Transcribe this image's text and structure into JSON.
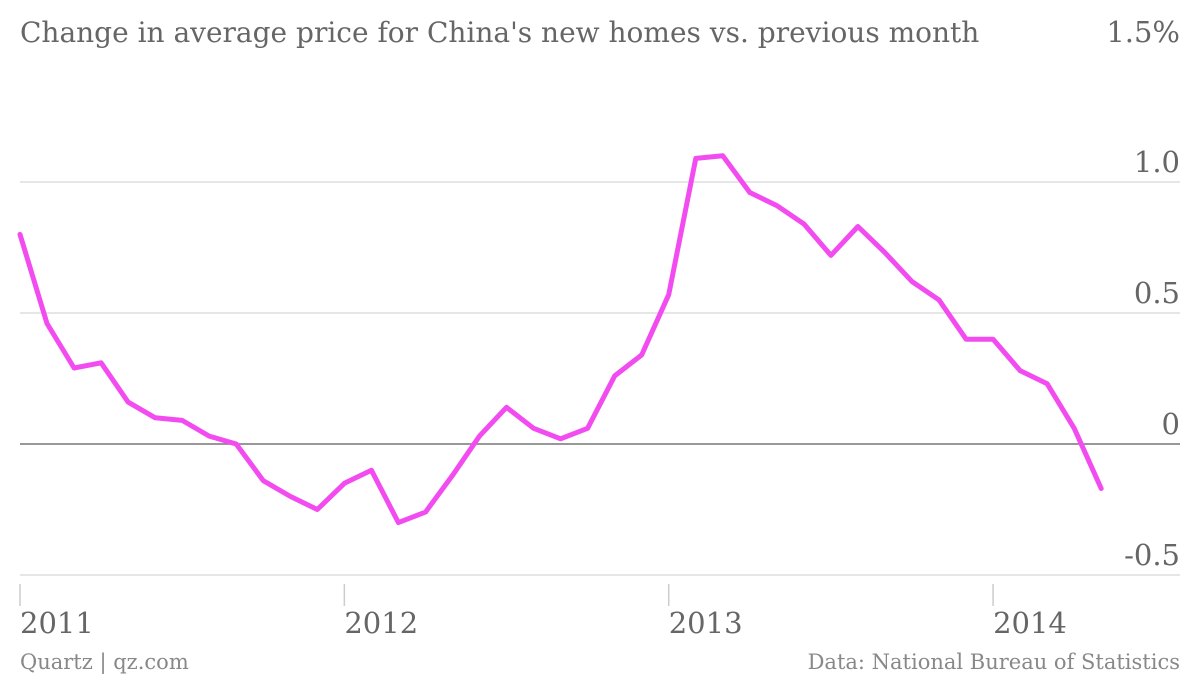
{
  "chart_data": {
    "type": "line",
    "title": "Change in average price for China's new homes vs. previous month",
    "xlabel": "",
    "ylabel": "",
    "ylim": [
      -0.5,
      1.5
    ],
    "y_ticks": [
      {
        "value": 1.5,
        "label": "1.5%"
      },
      {
        "value": 1.0,
        "label": "1.0"
      },
      {
        "value": 0.5,
        "label": "0.5"
      },
      {
        "value": 0,
        "label": "0"
      },
      {
        "value": -0.5,
        "label": "-0.5"
      }
    ],
    "x_ticks": [
      {
        "value": "2011-01",
        "label": "2011"
      },
      {
        "value": "2012-01",
        "label": "2012"
      },
      {
        "value": "2013-01",
        "label": "2013"
      },
      {
        "value": "2014-01",
        "label": "2014"
      }
    ],
    "line_color": "#f24cf1",
    "grid": true,
    "series": [
      {
        "x": [
          "2011-01",
          "2011-02",
          "2011-03",
          "2011-04",
          "2011-05",
          "2011-06",
          "2011-07",
          "2011-08",
          "2011-09",
          "2011-10",
          "2011-11",
          "2011-12",
          "2012-01",
          "2012-02",
          "2012-03",
          "2012-04",
          "2012-05",
          "2012-06",
          "2012-07",
          "2012-08",
          "2012-09",
          "2012-10",
          "2012-11",
          "2012-12",
          "2013-01",
          "2013-02",
          "2013-03",
          "2013-04",
          "2013-05",
          "2013-06",
          "2013-07",
          "2013-08",
          "2013-09",
          "2013-10",
          "2013-11",
          "2013-12",
          "2014-01",
          "2014-02",
          "2014-03",
          "2014-04",
          "2014-05"
        ],
        "values": [
          0.8,
          0.46,
          0.29,
          0.31,
          0.16,
          0.1,
          0.09,
          0.03,
          0.0,
          -0.14,
          -0.2,
          -0.25,
          -0.15,
          -0.1,
          -0.3,
          -0.26,
          -0.12,
          0.03,
          0.14,
          0.06,
          0.02,
          0.06,
          0.26,
          0.34,
          0.57,
          1.09,
          1.1,
          0.96,
          0.91,
          0.84,
          0.72,
          0.83,
          0.73,
          0.62,
          0.55,
          0.4,
          0.4,
          0.28,
          0.23,
          0.06,
          -0.17
        ]
      }
    ]
  },
  "footer": {
    "source_left": "Quartz | qz.com",
    "source_right": "Data: National Bureau of Statistics"
  }
}
